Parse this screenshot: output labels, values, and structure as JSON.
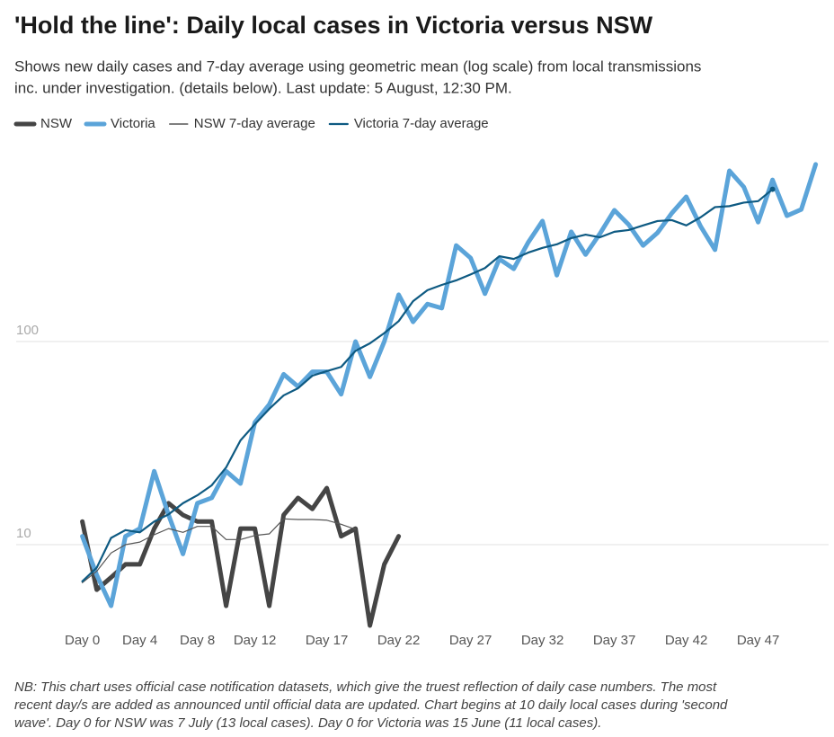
{
  "chart_data": {
    "type": "line",
    "title": "'Hold the line': Daily local cases in Victoria versus NSW",
    "subtitle": [
      "Shows new daily cases and 7-day average using geometric mean (log scale) from local transmissions",
      "inc. under investigation. (details below). Last update: 5 August, 12:30 PM."
    ],
    "note": [
      "NB: This chart uses official case notification datasets, which give the truest reflection of daily case numbers. The most",
      "recent day/s are added as announced until official data are updated. Chart begins at 10 daily local cases during 'second",
      "wave'. Day 0 for NSW was 7 July (13 local cases). Day 0 for Victoria was 15 June (11 local cases)."
    ],
    "x": [
      0,
      1,
      2,
      3,
      4,
      5,
      6,
      7,
      8,
      9,
      10,
      11,
      12,
      13,
      14,
      15,
      16,
      17,
      18,
      19,
      20,
      21,
      22,
      23,
      24,
      25,
      26,
      27,
      28,
      29,
      30,
      31,
      32,
      33,
      34,
      35,
      36,
      37,
      38,
      39,
      40,
      41,
      42,
      43,
      44,
      45,
      46,
      47,
      48,
      49,
      50,
      51
    ],
    "xlim": [
      -4.6,
      51.9
    ],
    "xticks": [
      {
        "value": 0,
        "label": "Day 0"
      },
      {
        "value": 4,
        "label": "Day 4"
      },
      {
        "value": 8,
        "label": "Day 8"
      },
      {
        "value": 12,
        "label": "Day 12"
      },
      {
        "value": 17,
        "label": "Day 17"
      },
      {
        "value": 22,
        "label": "Day 22"
      },
      {
        "value": 27,
        "label": "Day 27"
      },
      {
        "value": 32,
        "label": "Day 32"
      },
      {
        "value": 37,
        "label": "Day 37"
      },
      {
        "value": 42,
        "label": "Day 42"
      },
      {
        "value": 47,
        "label": "Day 47"
      }
    ],
    "ylim": [
      3.8,
      1000
    ],
    "yticks": [
      10,
      100
    ],
    "log_scale": true,
    "grid": true,
    "series": [
      {
        "name": "NSW",
        "color": "#454545",
        "values": [
          13,
          6,
          6.9,
          8,
          8,
          12,
          16,
          14,
          13,
          13,
          5,
          12,
          12,
          5,
          14,
          17,
          15,
          19,
          11,
          12,
          4,
          8,
          11,
          null,
          null,
          null,
          null,
          null,
          null,
          null,
          null,
          null,
          null,
          null,
          null,
          null,
          null,
          null,
          null,
          null,
          null,
          null,
          null,
          null,
          null,
          null,
          null,
          null,
          null,
          null,
          null,
          null
        ]
      },
      {
        "name": "Victoria",
        "color": "#5ba4d9",
        "values": [
          11,
          7.1,
          5,
          11,
          12,
          23,
          14,
          9,
          16,
          17,
          23,
          20,
          40,
          49,
          69,
          60,
          71,
          71,
          55,
          100,
          67,
          100,
          170,
          125,
          153,
          146,
          297,
          258,
          172,
          255,
          228,
          307,
          392,
          212,
          347,
          268,
          340,
          443,
          376,
          297,
          343,
          429,
          516,
          369,
          283,
          693,
          577,
          387,
          625,
          416,
          447,
          745
        ]
      },
      {
        "name": "NSW 7-day average",
        "color": "#555555",
        "values": [
          6.5,
          7.4,
          9.1,
          10,
          10.3,
          11.2,
          12,
          11.5,
          12.3,
          12.3,
          10.6,
          10.6,
          11.1,
          11.3,
          13.4,
          13.3,
          13.3,
          13.2,
          12.6,
          11.9,
          null,
          null,
          null,
          null,
          null,
          null,
          null,
          null,
          null,
          null,
          null,
          null,
          null,
          null,
          null,
          null,
          null,
          null,
          null,
          null,
          null,
          null,
          null,
          null,
          null,
          null,
          null,
          null,
          null,
          null,
          null,
          null
        ]
      },
      {
        "name": "Victoria 7-day average",
        "color": "#0e5a82",
        "values": [
          6.6,
          7.7,
          10.8,
          11.8,
          11.5,
          13,
          14.1,
          16,
          17.5,
          19.6,
          24,
          32.6,
          39.2,
          46.6,
          54.3,
          58.9,
          67.9,
          71.5,
          75,
          90,
          98,
          110,
          126,
          158,
          179,
          190,
          200,
          214,
          230,
          263,
          255,
          274,
          289,
          301,
          323,
          336,
          326,
          347,
          354,
          373,
          392,
          396,
          373,
          409,
          459,
          464,
          483,
          491,
          562,
          null,
          null,
          null
        ]
      }
    ]
  }
}
